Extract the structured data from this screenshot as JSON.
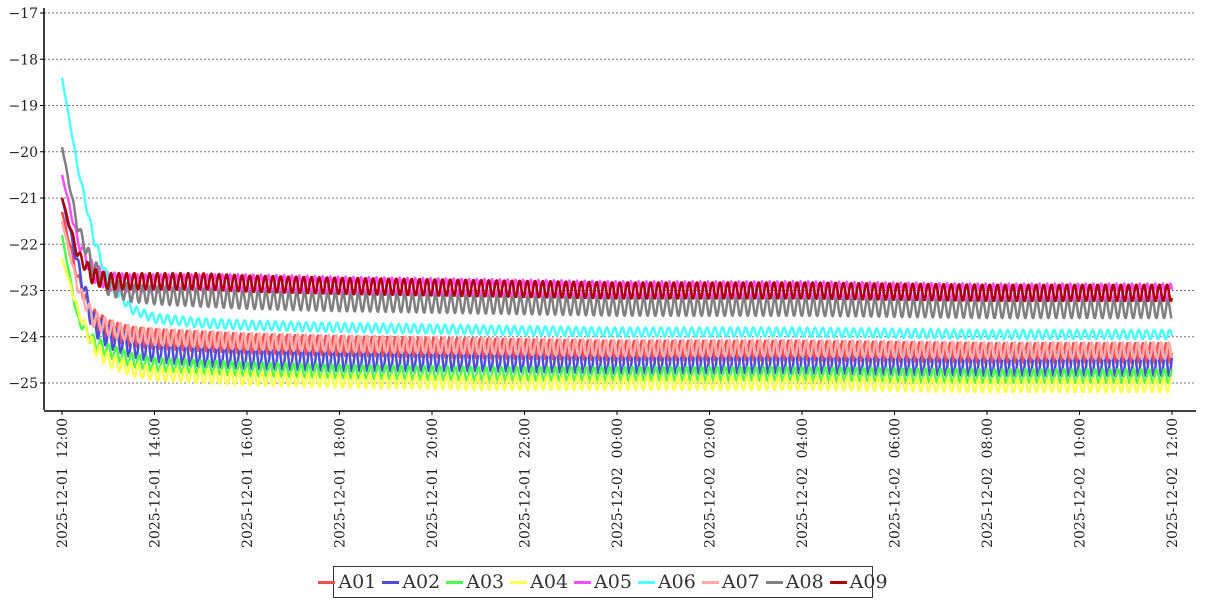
{
  "chart_data": {
    "type": "line",
    "title": "",
    "xlabel": "",
    "ylabel": "",
    "ylim": [
      -25.6,
      -17
    ],
    "yticks": [
      -17,
      -18,
      -19,
      -20,
      -21,
      -22,
      -23,
      -24,
      -25
    ],
    "ytick_labels": [
      "−17",
      "−18",
      "−19",
      "−20",
      "−21",
      "−22",
      "−23",
      "−24",
      "−25"
    ],
    "xlim": [
      "2025-12-01 11:50",
      "2025-12-02 12:20"
    ],
    "xticks": [
      "2025-12-01 12:00",
      "2025-12-01 14:00",
      "2025-12-01 16:00",
      "2025-12-01 18:00",
      "2025-12-01 20:00",
      "2025-12-01 22:00",
      "2025-12-02 00:00",
      "2025-12-02 02:00",
      "2025-12-02 04:00",
      "2025-12-02 06:00",
      "2025-12-02 08:00",
      "2025-12-02 10:00",
      "2025-12-02 12:00"
    ],
    "xtick_labels": [
      "2025-12-01  12:00",
      "2025-12-01  14:00",
      "2025-12-01  16:00",
      "2025-12-01  18:00",
      "2025-12-01  20:00",
      "2025-12-01  22:00",
      "2025-12-02  00:00",
      "2025-12-02  02:00",
      "2025-12-02  04:00",
      "2025-12-02  06:00",
      "2025-12-02  08:00",
      "2025-12-02  10:00",
      "2025-12-02  12:00"
    ],
    "grid": "horizontal dotted",
    "legend": "bottom-center",
    "series_note_period_minutes": 10,
    "series": [
      {
        "name": "A01",
        "color": "#ff4d4d",
        "x": [
          "2025-12-01 12:00",
          "2025-12-01 12:20",
          "2025-12-01 12:40",
          "2025-12-01 13:00",
          "2025-12-01 13:30",
          "2025-12-01 14:00",
          "2025-12-01 15:00",
          "2025-12-01 16:00",
          "2025-12-01 18:00",
          "2025-12-01 21:00",
          "2025-12-02 00:00",
          "2025-12-02 04:00",
          "2025-12-02 08:00",
          "2025-12-02 12:00"
        ],
        "y": [
          -21.3,
          -22.7,
          -23.6,
          -23.85,
          -24.0,
          -24.05,
          -24.1,
          -24.15,
          -24.2,
          -24.25,
          -24.3,
          -24.3,
          -24.35,
          -24.35
        ],
        "amplitude": 0.22
      },
      {
        "name": "A02",
        "color": "#4d4ddd",
        "x": [
          "2025-12-01 12:00",
          "2025-12-01 12:20",
          "2025-12-01 12:40",
          "2025-12-01 13:00",
          "2025-12-01 13:30",
          "2025-12-01 14:00",
          "2025-12-01 15:00",
          "2025-12-01 16:00",
          "2025-12-01 18:00",
          "2025-12-01 21:00",
          "2025-12-02 00:00",
          "2025-12-02 04:00",
          "2025-12-02 08:00",
          "2025-12-02 12:00"
        ],
        "y": [
          -21.0,
          -22.4,
          -23.7,
          -24.0,
          -24.2,
          -24.3,
          -24.4,
          -24.45,
          -24.5,
          -24.5,
          -24.55,
          -24.55,
          -24.6,
          -24.6
        ],
        "amplitude": 0.25
      },
      {
        "name": "A03",
        "color": "#4dff4d",
        "x": [
          "2025-12-01 12:00",
          "2025-12-01 12:20",
          "2025-12-01 12:40",
          "2025-12-01 13:00",
          "2025-12-01 13:30",
          "2025-12-01 14:00",
          "2025-12-01 15:00",
          "2025-12-01 16:00",
          "2025-12-01 18:00",
          "2025-12-01 21:00",
          "2025-12-02 00:00",
          "2025-12-02 04:00",
          "2025-12-02 08:00",
          "2025-12-02 12:00"
        ],
        "y": [
          -21.8,
          -23.6,
          -24.1,
          -24.3,
          -24.5,
          -24.6,
          -24.65,
          -24.7,
          -24.75,
          -24.8,
          -24.8,
          -24.8,
          -24.85,
          -24.85
        ],
        "amplitude": 0.15
      },
      {
        "name": "A04",
        "color": "#ffff4d",
        "x": [
          "2025-12-01 12:00",
          "2025-12-01 12:20",
          "2025-12-01 12:40",
          "2025-12-01 13:00",
          "2025-12-01 13:30",
          "2025-12-01 14:00",
          "2025-12-01 15:00",
          "2025-12-01 16:00",
          "2025-12-01 18:00",
          "2025-12-01 21:00",
          "2025-12-02 00:00",
          "2025-12-02 04:00",
          "2025-12-02 08:00",
          "2025-12-02 12:00"
        ],
        "y": [
          -22.3,
          -23.4,
          -24.2,
          -24.5,
          -24.7,
          -24.8,
          -24.85,
          -24.9,
          -24.95,
          -25.0,
          -25.0,
          -25.0,
          -25.05,
          -25.05
        ],
        "amplitude": 0.15
      },
      {
        "name": "A05",
        "color": "#ff4dff",
        "x": [
          "2025-12-01 12:00",
          "2025-12-01 12:20",
          "2025-12-01 12:40",
          "2025-12-01 13:00",
          "2025-12-01 13:30",
          "2025-12-01 14:00",
          "2025-12-01 15:00",
          "2025-12-01 16:00",
          "2025-12-01 18:00",
          "2025-12-01 21:00",
          "2025-12-02 00:00",
          "2025-12-02 04:00",
          "2025-12-02 08:00",
          "2025-12-02 12:00"
        ],
        "y": [
          -20.5,
          -21.9,
          -22.6,
          -22.8,
          -22.85,
          -22.85,
          -22.85,
          -22.85,
          -22.9,
          -22.95,
          -23.0,
          -23.0,
          -23.05,
          -23.05
        ],
        "amplitude": 0.2
      },
      {
        "name": "A06",
        "color": "#4dffff",
        "x": [
          "2025-12-01 12:00",
          "2025-12-01 12:20",
          "2025-12-01 12:40",
          "2025-12-01 13:00",
          "2025-12-01 13:30",
          "2025-12-01 14:00",
          "2025-12-01 15:00",
          "2025-12-01 16:00",
          "2025-12-01 18:00",
          "2025-12-01 21:00",
          "2025-12-02 00:00",
          "2025-12-02 04:00",
          "2025-12-02 08:00",
          "2025-12-02 12:00"
        ],
        "y": [
          -18.4,
          -20.3,
          -21.8,
          -22.8,
          -23.4,
          -23.6,
          -23.7,
          -23.75,
          -23.8,
          -23.85,
          -23.9,
          -23.9,
          -23.95,
          -23.95
        ],
        "amplitude": 0.1
      },
      {
        "name": "A07",
        "color": "#ffaaaa",
        "x": [
          "2025-12-01 12:00",
          "2025-12-01 12:20",
          "2025-12-01 12:40",
          "2025-12-01 13:00",
          "2025-12-01 13:30",
          "2025-12-01 14:00",
          "2025-12-01 15:00",
          "2025-12-01 16:00",
          "2025-12-01 18:00",
          "2025-12-01 21:00",
          "2025-12-02 00:00",
          "2025-12-02 04:00",
          "2025-12-02 08:00",
          "2025-12-02 12:00"
        ],
        "y": [
          -21.5,
          -22.9,
          -23.6,
          -23.8,
          -23.95,
          -24.0,
          -24.05,
          -24.1,
          -24.15,
          -24.2,
          -24.25,
          -24.25,
          -24.3,
          -24.3
        ],
        "amplitude": 0.18
      },
      {
        "name": "A08",
        "color": "#808080",
        "x": [
          "2025-12-01 12:00",
          "2025-12-01 12:20",
          "2025-12-01 12:40",
          "2025-12-01 13:00",
          "2025-12-01 13:30",
          "2025-12-01 14:00",
          "2025-12-01 15:00",
          "2025-12-01 16:00",
          "2025-12-01 18:00",
          "2025-12-01 21:00",
          "2025-12-02 00:00",
          "2025-12-02 04:00",
          "2025-12-02 08:00",
          "2025-12-02 12:00"
        ],
        "y": [
          -19.9,
          -21.6,
          -22.5,
          -22.9,
          -23.05,
          -23.1,
          -23.15,
          -23.2,
          -23.25,
          -23.3,
          -23.35,
          -23.35,
          -23.4,
          -23.4
        ],
        "amplitude": 0.2
      },
      {
        "name": "A09",
        "color": "#aa0000",
        "x": [
          "2025-12-01 12:00",
          "2025-12-01 12:20",
          "2025-12-01 12:40",
          "2025-12-01 13:00",
          "2025-12-01 13:30",
          "2025-12-01 14:00",
          "2025-12-01 15:00",
          "2025-12-01 16:00",
          "2025-12-01 18:00",
          "2025-12-01 21:00",
          "2025-12-02 00:00",
          "2025-12-02 04:00",
          "2025-12-02 08:00",
          "2025-12-02 12:00"
        ],
        "y": [
          -21.0,
          -22.2,
          -22.7,
          -22.8,
          -22.8,
          -22.8,
          -22.8,
          -22.85,
          -22.9,
          -22.95,
          -23.0,
          -23.0,
          -23.05,
          -23.05
        ],
        "amplitude": 0.18
      }
    ]
  }
}
